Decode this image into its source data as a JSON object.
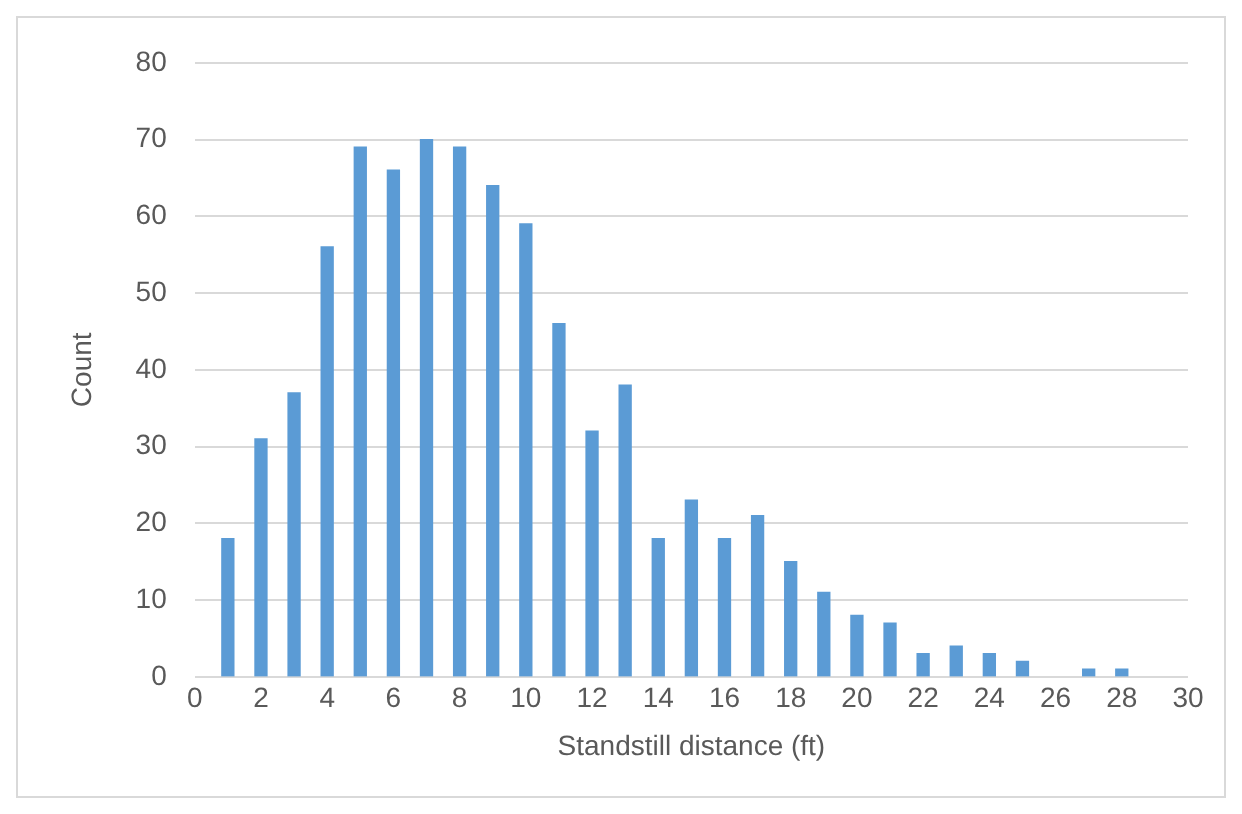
{
  "chart_data": {
    "type": "bar",
    "xlabel": "Standstill distance (ft)",
    "ylabel": "Count",
    "x": [
      1,
      2,
      3,
      4,
      5,
      6,
      7,
      8,
      9,
      10,
      11,
      12,
      13,
      14,
      15,
      16,
      17,
      18,
      19,
      20,
      21,
      22,
      23,
      24,
      25,
      27,
      28
    ],
    "values": [
      18,
      31,
      37,
      56,
      69,
      66,
      70,
      69,
      64,
      59,
      46,
      32,
      38,
      18,
      23,
      18,
      21,
      15,
      11,
      8,
      7,
      3,
      4,
      3,
      2,
      1,
      1
    ],
    "color": "#5b9bd5",
    "xlim": [
      0,
      30
    ],
    "xticks": [
      0,
      2,
      4,
      6,
      8,
      10,
      12,
      14,
      16,
      18,
      20,
      22,
      24,
      26,
      28,
      30
    ],
    "ylim": [
      0,
      80
    ],
    "yticks": [
      0,
      10,
      20,
      30,
      40,
      50,
      60,
      70,
      80
    ],
    "grid": "y"
  }
}
